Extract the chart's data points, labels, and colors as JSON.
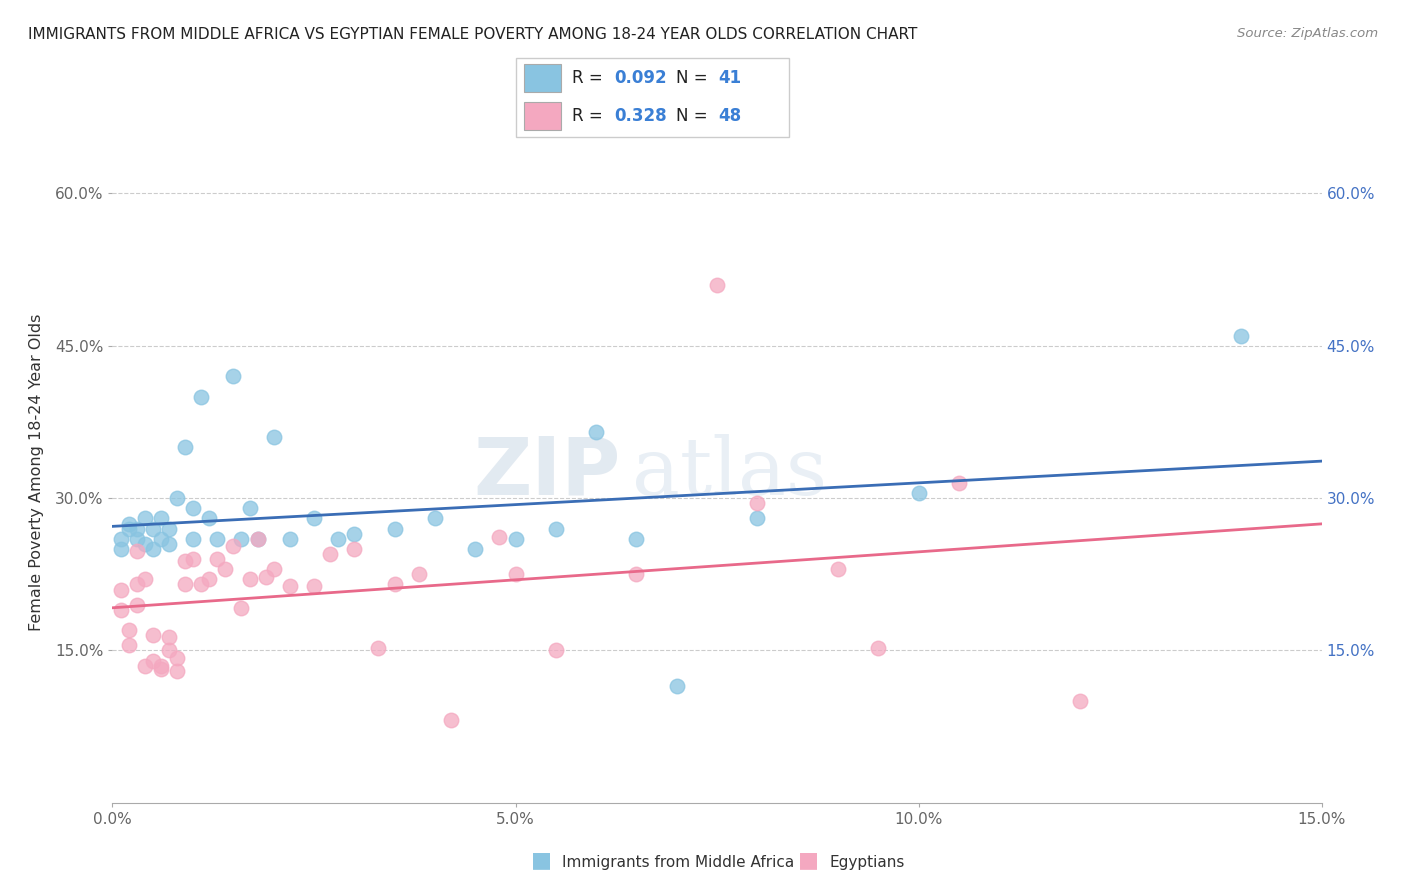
{
  "title": "IMMIGRANTS FROM MIDDLE AFRICA VS EGYPTIAN FEMALE POVERTY AMONG 18-24 YEAR OLDS CORRELATION CHART",
  "source": "Source: ZipAtlas.com",
  "ylabel": "Female Poverty Among 18-24 Year Olds",
  "xlabel_blue": "Immigrants from Middle Africa",
  "xlabel_pink": "Egyptians",
  "blue_R": 0.092,
  "blue_N": 41,
  "pink_R": 0.328,
  "pink_N": 48,
  "xlim": [
    0.0,
    0.15
  ],
  "ylim": [
    0.0,
    0.65
  ],
  "yticks": [
    0.15,
    0.3,
    0.45,
    0.6
  ],
  "ytick_labels": [
    "15.0%",
    "30.0%",
    "45.0%",
    "60.0%"
  ],
  "xticks": [
    0.0,
    0.05,
    0.1,
    0.15
  ],
  "xtick_labels": [
    "0.0%",
    "5.0%",
    "10.0%",
    "15.0%"
  ],
  "blue_color": "#89c4e1",
  "pink_color": "#f4a8c0",
  "blue_line_color": "#3a6db5",
  "pink_line_color": "#e8698a",
  "blue_scatter_x": [
    0.001,
    0.001,
    0.002,
    0.002,
    0.003,
    0.003,
    0.004,
    0.004,
    0.005,
    0.005,
    0.006,
    0.006,
    0.007,
    0.007,
    0.008,
    0.009,
    0.01,
    0.01,
    0.011,
    0.012,
    0.013,
    0.015,
    0.016,
    0.017,
    0.018,
    0.02,
    0.022,
    0.025,
    0.028,
    0.03,
    0.035,
    0.04,
    0.045,
    0.05,
    0.055,
    0.06,
    0.065,
    0.07,
    0.08,
    0.1,
    0.14
  ],
  "blue_scatter_y": [
    0.25,
    0.26,
    0.27,
    0.275,
    0.26,
    0.27,
    0.255,
    0.28,
    0.25,
    0.27,
    0.26,
    0.28,
    0.255,
    0.27,
    0.3,
    0.35,
    0.26,
    0.29,
    0.4,
    0.28,
    0.26,
    0.42,
    0.26,
    0.29,
    0.26,
    0.36,
    0.26,
    0.28,
    0.26,
    0.265,
    0.27,
    0.28,
    0.25,
    0.26,
    0.27,
    0.365,
    0.26,
    0.115,
    0.28,
    0.305,
    0.46
  ],
  "pink_scatter_x": [
    0.001,
    0.001,
    0.002,
    0.002,
    0.003,
    0.003,
    0.003,
    0.004,
    0.004,
    0.005,
    0.005,
    0.006,
    0.006,
    0.007,
    0.007,
    0.008,
    0.008,
    0.009,
    0.009,
    0.01,
    0.011,
    0.012,
    0.013,
    0.014,
    0.015,
    0.016,
    0.017,
    0.018,
    0.019,
    0.02,
    0.022,
    0.025,
    0.027,
    0.03,
    0.033,
    0.035,
    0.038,
    0.042,
    0.048,
    0.05,
    0.055,
    0.065,
    0.075,
    0.08,
    0.09,
    0.095,
    0.105,
    0.12
  ],
  "pink_scatter_y": [
    0.19,
    0.21,
    0.155,
    0.17,
    0.195,
    0.215,
    0.248,
    0.135,
    0.22,
    0.165,
    0.14,
    0.135,
    0.132,
    0.163,
    0.15,
    0.143,
    0.13,
    0.215,
    0.238,
    0.24,
    0.215,
    0.22,
    0.24,
    0.23,
    0.253,
    0.192,
    0.22,
    0.26,
    0.222,
    0.23,
    0.213,
    0.213,
    0.245,
    0.25,
    0.152,
    0.215,
    0.225,
    0.082,
    0.262,
    0.225,
    0.15,
    0.225,
    0.51,
    0.295,
    0.23,
    0.152,
    0.315,
    0.1
  ],
  "watermark_zip": "ZIP",
  "watermark_atlas": "atlas"
}
